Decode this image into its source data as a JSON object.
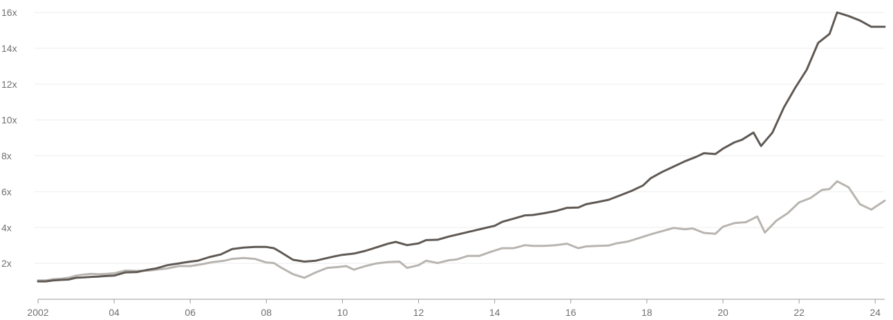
{
  "chart_data": {
    "type": "line",
    "title": "",
    "xlabel": "",
    "ylabel": "",
    "xlim": [
      2002.0,
      2024.25
    ],
    "ylim": [
      0,
      16
    ],
    "grid": true,
    "y_ticks": [
      {
        "value": 2,
        "label": "2x"
      },
      {
        "value": 4,
        "label": "4x"
      },
      {
        "value": 6,
        "label": "6x"
      },
      {
        "value": 8,
        "label": "8x"
      },
      {
        "value": 10,
        "label": "10x"
      },
      {
        "value": 12,
        "label": "12x"
      },
      {
        "value": 14,
        "label": "14x"
      },
      {
        "value": 16,
        "label": "16x"
      }
    ],
    "x_ticks": [
      {
        "value": 2002,
        "label": "2002"
      },
      {
        "value": 2004,
        "label": "04"
      },
      {
        "value": 2006,
        "label": "06"
      },
      {
        "value": 2008,
        "label": "08"
      },
      {
        "value": 2010,
        "label": "10"
      },
      {
        "value": 2012,
        "label": "12"
      },
      {
        "value": 2014,
        "label": "14"
      },
      {
        "value": 2016,
        "label": "16"
      },
      {
        "value": 2018,
        "label": "18"
      },
      {
        "value": 2020,
        "label": "20"
      },
      {
        "value": 2022,
        "label": "22"
      },
      {
        "value": 2024,
        "label": "24"
      }
    ],
    "series": [
      {
        "color": "#5f5853",
        "points": [
          [
            2002.0,
            1.0
          ],
          [
            2002.2,
            1.0
          ],
          [
            2002.4,
            1.05
          ],
          [
            2002.6,
            1.08
          ],
          [
            2002.8,
            1.1
          ],
          [
            2003.0,
            1.2
          ],
          [
            2003.2,
            1.22
          ],
          [
            2003.4,
            1.25
          ],
          [
            2003.6,
            1.27
          ],
          [
            2003.8,
            1.3
          ],
          [
            2004.0,
            1.32
          ],
          [
            2004.3,
            1.5
          ],
          [
            2004.6,
            1.52
          ],
          [
            2004.9,
            1.65
          ],
          [
            2005.1,
            1.72
          ],
          [
            2005.4,
            1.9
          ],
          [
            2005.7,
            2.0
          ],
          [
            2006.0,
            2.1
          ],
          [
            2006.2,
            2.15
          ],
          [
            2006.5,
            2.35
          ],
          [
            2006.8,
            2.5
          ],
          [
            2007.1,
            2.8
          ],
          [
            2007.4,
            2.88
          ],
          [
            2007.7,
            2.92
          ],
          [
            2008.0,
            2.92
          ],
          [
            2008.2,
            2.85
          ],
          [
            2008.4,
            2.6
          ],
          [
            2008.7,
            2.2
          ],
          [
            2009.0,
            2.1
          ],
          [
            2009.3,
            2.15
          ],
          [
            2009.5,
            2.25
          ],
          [
            2009.8,
            2.4
          ],
          [
            2010.0,
            2.48
          ],
          [
            2010.3,
            2.55
          ],
          [
            2010.6,
            2.7
          ],
          [
            2010.9,
            2.9
          ],
          [
            2011.2,
            3.1
          ],
          [
            2011.4,
            3.2
          ],
          [
            2011.7,
            3.02
          ],
          [
            2012.0,
            3.12
          ],
          [
            2012.2,
            3.3
          ],
          [
            2012.5,
            3.32
          ],
          [
            2012.8,
            3.5
          ],
          [
            2013.1,
            3.65
          ],
          [
            2013.4,
            3.8
          ],
          [
            2013.7,
            3.95
          ],
          [
            2014.0,
            4.1
          ],
          [
            2014.2,
            4.32
          ],
          [
            2014.5,
            4.5
          ],
          [
            2014.8,
            4.68
          ],
          [
            2015.0,
            4.7
          ],
          [
            2015.3,
            4.8
          ],
          [
            2015.6,
            4.92
          ],
          [
            2015.9,
            5.1
          ],
          [
            2016.2,
            5.12
          ],
          [
            2016.4,
            5.3
          ],
          [
            2016.7,
            5.42
          ],
          [
            2017.0,
            5.55
          ],
          [
            2017.3,
            5.8
          ],
          [
            2017.6,
            6.05
          ],
          [
            2017.9,
            6.35
          ],
          [
            2018.1,
            6.75
          ],
          [
            2018.4,
            7.1
          ],
          [
            2018.7,
            7.4
          ],
          [
            2019.0,
            7.7
          ],
          [
            2019.3,
            7.95
          ],
          [
            2019.5,
            8.15
          ],
          [
            2019.8,
            8.1
          ],
          [
            2020.0,
            8.4
          ],
          [
            2020.3,
            8.75
          ],
          [
            2020.5,
            8.9
          ],
          [
            2020.8,
            9.3
          ],
          [
            2021.0,
            8.55
          ],
          [
            2021.3,
            9.3
          ],
          [
            2021.6,
            10.7
          ],
          [
            2021.9,
            11.8
          ],
          [
            2022.2,
            12.8
          ],
          [
            2022.5,
            14.3
          ],
          [
            2022.8,
            14.8
          ],
          [
            2023.0,
            16.0
          ],
          [
            2023.3,
            15.8
          ],
          [
            2023.6,
            15.55
          ],
          [
            2023.9,
            15.2
          ],
          [
            2024.25,
            15.2
          ]
        ]
      },
      {
        "color": "#b8b4b0",
        "points": [
          [
            2002.0,
            1.05
          ],
          [
            2002.2,
            1.05
          ],
          [
            2002.4,
            1.12
          ],
          [
            2002.6,
            1.15
          ],
          [
            2002.8,
            1.2
          ],
          [
            2003.0,
            1.32
          ],
          [
            2003.2,
            1.38
          ],
          [
            2003.4,
            1.42
          ],
          [
            2003.6,
            1.4
          ],
          [
            2003.8,
            1.42
          ],
          [
            2004.0,
            1.45
          ],
          [
            2004.3,
            1.6
          ],
          [
            2004.6,
            1.58
          ],
          [
            2004.9,
            1.6
          ],
          [
            2005.1,
            1.65
          ],
          [
            2005.4,
            1.72
          ],
          [
            2005.7,
            1.85
          ],
          [
            2006.0,
            1.85
          ],
          [
            2006.3,
            1.95
          ],
          [
            2006.6,
            2.08
          ],
          [
            2006.9,
            2.15
          ],
          [
            2007.1,
            2.25
          ],
          [
            2007.4,
            2.3
          ],
          [
            2007.7,
            2.25
          ],
          [
            2008.0,
            2.05
          ],
          [
            2008.2,
            2.02
          ],
          [
            2008.4,
            1.75
          ],
          [
            2008.7,
            1.4
          ],
          [
            2009.0,
            1.2
          ],
          [
            2009.3,
            1.5
          ],
          [
            2009.6,
            1.75
          ],
          [
            2009.9,
            1.8
          ],
          [
            2010.1,
            1.85
          ],
          [
            2010.3,
            1.65
          ],
          [
            2010.6,
            1.85
          ],
          [
            2010.9,
            2.0
          ],
          [
            2011.2,
            2.08
          ],
          [
            2011.5,
            2.1
          ],
          [
            2011.7,
            1.75
          ],
          [
            2012.0,
            1.9
          ],
          [
            2012.2,
            2.15
          ],
          [
            2012.5,
            2.02
          ],
          [
            2012.8,
            2.18
          ],
          [
            2013.0,
            2.22
          ],
          [
            2013.3,
            2.42
          ],
          [
            2013.6,
            2.42
          ],
          [
            2013.9,
            2.65
          ],
          [
            2014.2,
            2.85
          ],
          [
            2014.5,
            2.85
          ],
          [
            2014.8,
            3.02
          ],
          [
            2015.0,
            2.98
          ],
          [
            2015.3,
            2.98
          ],
          [
            2015.6,
            3.02
          ],
          [
            2015.9,
            3.1
          ],
          [
            2016.2,
            2.85
          ],
          [
            2016.4,
            2.95
          ],
          [
            2016.7,
            2.98
          ],
          [
            2017.0,
            3.0
          ],
          [
            2017.2,
            3.12
          ],
          [
            2017.5,
            3.22
          ],
          [
            2017.8,
            3.42
          ],
          [
            2018.1,
            3.62
          ],
          [
            2018.4,
            3.8
          ],
          [
            2018.7,
            3.98
          ],
          [
            2019.0,
            3.9
          ],
          [
            2019.2,
            3.95
          ],
          [
            2019.5,
            3.7
          ],
          [
            2019.8,
            3.65
          ],
          [
            2020.0,
            4.05
          ],
          [
            2020.3,
            4.25
          ],
          [
            2020.6,
            4.3
          ],
          [
            2020.9,
            4.62
          ],
          [
            2021.1,
            3.72
          ],
          [
            2021.4,
            4.38
          ],
          [
            2021.7,
            4.8
          ],
          [
            2022.0,
            5.4
          ],
          [
            2022.3,
            5.65
          ],
          [
            2022.6,
            6.1
          ],
          [
            2022.8,
            6.15
          ],
          [
            2023.0,
            6.58
          ],
          [
            2023.3,
            6.25
          ],
          [
            2023.6,
            5.3
          ],
          [
            2023.9,
            5.0
          ],
          [
            2024.25,
            5.5
          ]
        ]
      }
    ]
  }
}
